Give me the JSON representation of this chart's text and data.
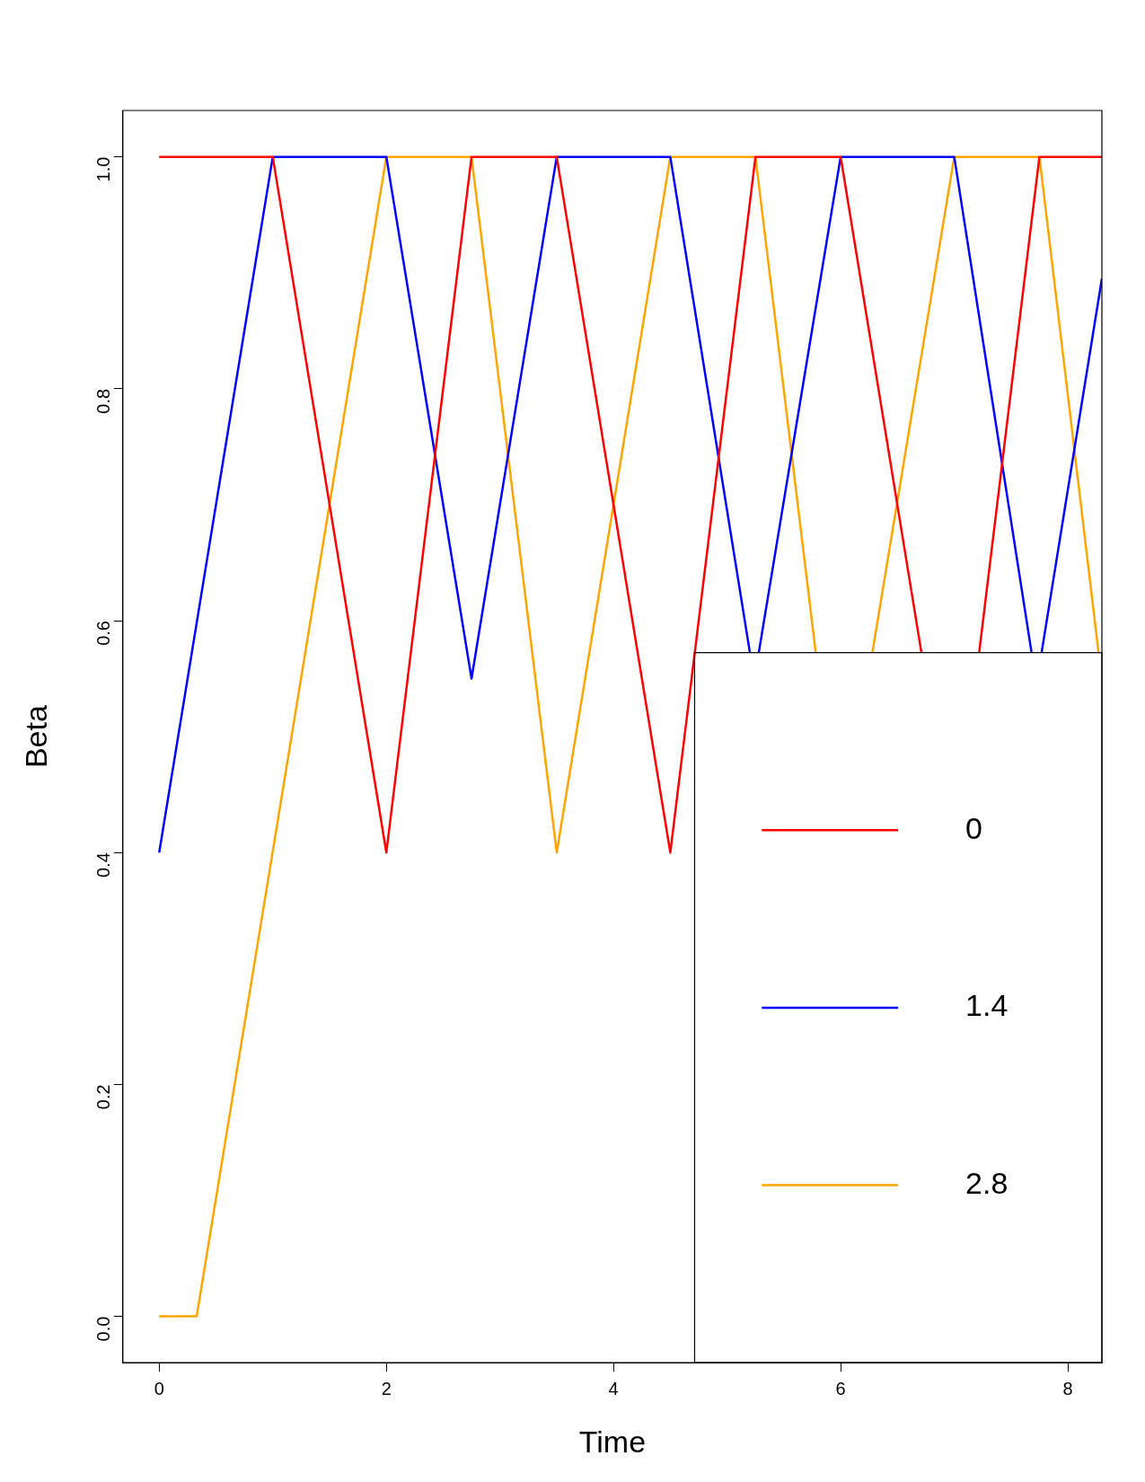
{
  "chart_data": {
    "type": "line",
    "xlabel": "Time",
    "ylabel": "Beta",
    "xlim": [
      -0.32,
      8.3
    ],
    "ylim": [
      -0.04,
      1.04
    ],
    "xticks": [
      0,
      2,
      4,
      6,
      8
    ],
    "yticks": [
      {
        "value": 0,
        "label": "0.0"
      },
      {
        "value": 0.2,
        "label": "0.2"
      },
      {
        "value": 0.4,
        "label": "0.4"
      },
      {
        "value": 0.6,
        "label": "0.6"
      },
      {
        "value": 0.8,
        "label": "0.8"
      },
      {
        "value": 1,
        "label": "1.0"
      }
    ],
    "grid": false,
    "legend": "bottom right",
    "marker": "none",
    "line_style": "solid",
    "series": [
      {
        "name": "0",
        "color": "#ff0000",
        "x": [
          0,
          1,
          2,
          2.75,
          3.5,
          4.5,
          5.25,
          6,
          6.71,
          6.9,
          7.22,
          7.75,
          8.3
        ],
        "values": [
          1,
          1,
          0.4,
          1,
          1,
          0.4,
          1,
          1,
          0.573,
          null,
          0.573,
          1,
          1
        ]
      },
      {
        "name": "1.4",
        "color": "#0000ff",
        "x": [
          0,
          1,
          2,
          2.75,
          3.5,
          4.5,
          5.2,
          5.24,
          5.28,
          6,
          7,
          7.68,
          7.72,
          7.77,
          8.3
        ],
        "values": [
          0.4,
          1,
          1,
          0.55,
          1,
          1,
          0.573,
          null,
          0.573,
          1,
          1,
          0.573,
          null,
          0.573,
          0.895
        ]
      },
      {
        "name": "2.8",
        "color": "#ffa500",
        "x": [
          0,
          0.33,
          2,
          2.75,
          3.5,
          4.5,
          5.25,
          5.78,
          6,
          6.28,
          7,
          7.75,
          8.27
        ],
        "values": [
          0,
          0,
          1,
          1,
          0.4,
          1,
          1,
          0.573,
          null,
          0.573,
          1,
          1,
          0.573
        ]
      }
    ]
  }
}
